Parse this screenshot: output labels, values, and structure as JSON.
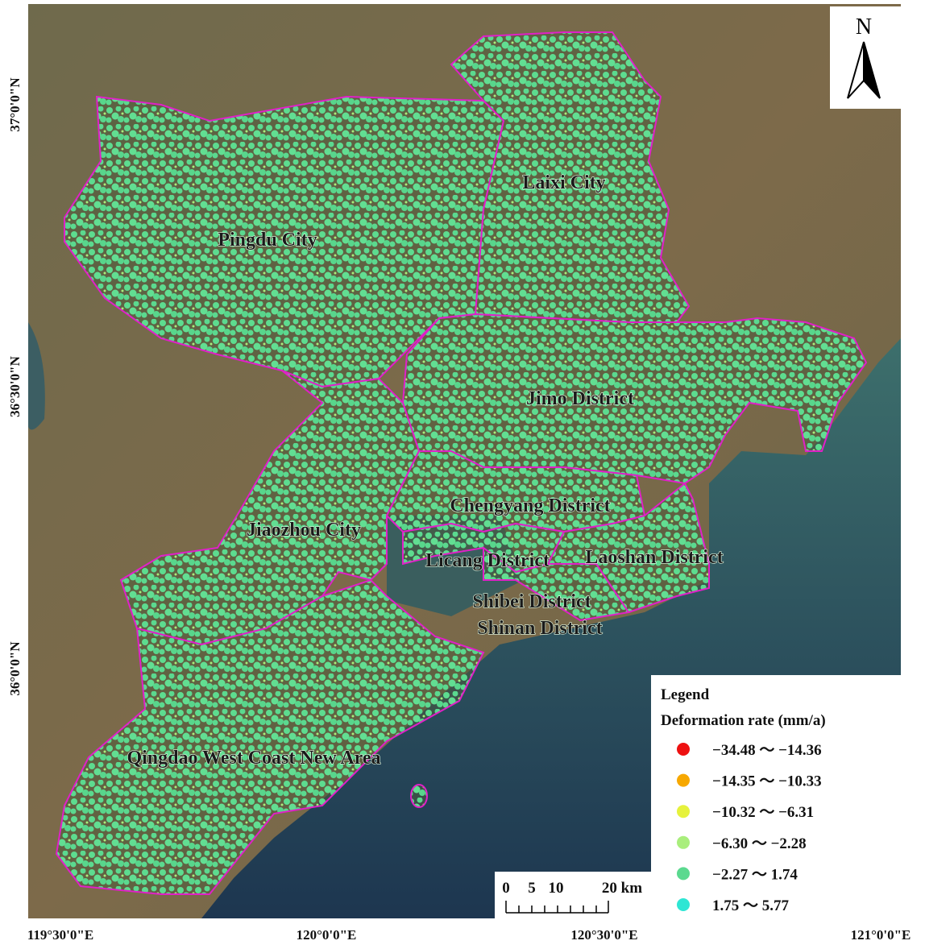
{
  "map": {
    "lon_labels": [
      "119°30'0\"E",
      "120°0'0\"E",
      "120°30'0\"E",
      "121°0'0\"E"
    ],
    "lat_labels": [
      "37°0'0\"N",
      "36°30'0\"N",
      "36°0'0\"N"
    ],
    "districts": [
      "Pingdu City",
      "Laixi City",
      "Jimo District",
      "Chengyang District",
      "Jiaozhou City",
      "Licang District",
      "Laoshan District",
      "Shibei District",
      "Shinan District",
      "Qingdao West Coast New Area"
    ],
    "north": "N",
    "scale_bar": [
      "0",
      "5",
      "10",
      "20 km"
    ],
    "legend": {
      "title": "Legend",
      "subtitle": "Deformation rate (mm/a)",
      "items": [
        {
          "label": "−34.48 ～ −14.36",
          "color": "#ee1111"
        },
        {
          "label": "−14.35 ～ −10.33",
          "color": "#f7a800"
        },
        {
          "label": "−10.32 ～ −6.31",
          "color": "#e6f23c"
        },
        {
          "label": "−6.30 ～ −2.28",
          "color": "#a9ee7c"
        },
        {
          "label": "−2.27 ～ 1.74",
          "color": "#5bd98f"
        },
        {
          "label": "1.75 ～ 5.77",
          "color": "#2ee6d4"
        }
      ]
    }
  }
}
